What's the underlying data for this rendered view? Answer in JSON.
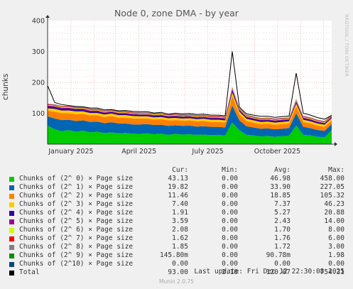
{
  "title": "Node 0, zone DMA - by year",
  "side_label": "RRDTOOL / TOBI OETIKER",
  "version": "Munin 2.0.75",
  "last_update": "Last update: Fri Dec 12 22:30:08 2025",
  "legend_headers": {
    "cur": "Cur:",
    "min": "Min:",
    "avg": "Avg:",
    "max": "Max:"
  },
  "legend": [
    {
      "name": "Chunks of (2^ 0) × Page size",
      "color": "#00cc00",
      "cur": "43.13",
      "min": "0.00",
      "avg": "46.98",
      "max": "458.00"
    },
    {
      "name": "Chunks of (2^ 1) × Page size",
      "color": "#0066b3",
      "cur": "19.82",
      "min": "0.00",
      "avg": "33.90",
      "max": "227.05"
    },
    {
      "name": "Chunks of (2^ 2) × Page size",
      "color": "#ff8000",
      "cur": "11.46",
      "min": "0.00",
      "avg": "18.85",
      "max": "105.32"
    },
    {
      "name": "Chunks of (2^ 3) × Page size",
      "color": "#ffcc00",
      "cur": "7.40",
      "min": "0.00",
      "avg": "7.37",
      "max": "46.23"
    },
    {
      "name": "Chunks of (2^ 4) × Page size",
      "color": "#330099",
      "cur": "1.91",
      "min": "0.00",
      "avg": "5.27",
      "max": "20.88"
    },
    {
      "name": "Chunks of (2^ 5) × Page size",
      "color": "#990099",
      "cur": "3.59",
      "min": "0.00",
      "avg": "2.43",
      "max": "14.00"
    },
    {
      "name": "Chunks of (2^ 6) × Page size",
      "color": "#ccff00",
      "cur": "2.08",
      "min": "0.00",
      "avg": "1.70",
      "max": "8.00"
    },
    {
      "name": "Chunks of (2^ 7) × Page size",
      "color": "#ff0000",
      "cur": "1.62",
      "min": "0.00",
      "avg": "1.76",
      "max": "6.00"
    },
    {
      "name": "Chunks of (2^ 8) × Page size",
      "color": "#808080",
      "cur": "1.85",
      "min": "0.00",
      "avg": "1.72",
      "max": "3.00"
    },
    {
      "name": "Chunks of (2^ 9) × Page size",
      "color": "#008f00",
      "cur": "145.80m",
      "min": "0.00",
      "avg": "90.78m",
      "max": "1.98"
    },
    {
      "name": "Chunks of (2^10) × Page size",
      "color": "#00487d",
      "cur": "0.00",
      "min": "0.00",
      "avg": "0.00",
      "max": "0.00"
    },
    {
      "name": "Total",
      "color": "#000000",
      "cur": "93.00",
      "min": "2.10",
      "avg": "120.07",
      "max": "754.31"
    }
  ],
  "chart_data": {
    "type": "area",
    "title": "Node 0, zone DMA - by year",
    "ylabel": "chunks",
    "xlabel": "",
    "ylim": [
      0,
      400
    ],
    "y_ticks": [
      100,
      200,
      300,
      400
    ],
    "x_ticks": [
      "January 2025",
      "April 2025",
      "July 2025",
      "October 2025"
    ],
    "x_range": [
      "2024-12-01",
      "2025-12-12"
    ],
    "grid": true,
    "stacked": true,
    "series": [
      {
        "name": "Chunks of (2^ 0) × Page size",
        "color": "#00cc00",
        "values": [
          60,
          48,
          42,
          45,
          40,
          44,
          38,
          40,
          36,
          38,
          35,
          36,
          34,
          33,
          35,
          32,
          34,
          30,
          33,
          31,
          32,
          30,
          31,
          29,
          30,
          28,
          70,
          45,
          30,
          28,
          25,
          26,
          24,
          26,
          27,
          60,
          30,
          28,
          24,
          22,
          45
        ]
      },
      {
        "name": "Chunks of (2^ 1) × Page size",
        "color": "#0066b3",
        "values": [
          30,
          35,
          36,
          34,
          35,
          33,
          34,
          33,
          32,
          33,
          32,
          31,
          30,
          31,
          30,
          30,
          29,
          29,
          28,
          28,
          28,
          27,
          27,
          27,
          26,
          26,
          55,
          32,
          28,
          26,
          25,
          25,
          24,
          24,
          25,
          40,
          26,
          24,
          22,
          21,
          20
        ]
      },
      {
        "name": "Chunks of (2^ 2) × Page size",
        "color": "#ff8000",
        "values": [
          18,
          22,
          22,
          21,
          22,
          21,
          21,
          20,
          20,
          20,
          19,
          19,
          19,
          19,
          18,
          18,
          18,
          18,
          17,
          17,
          17,
          17,
          17,
          16,
          16,
          16,
          30,
          20,
          17,
          16,
          15,
          15,
          15,
          15,
          15,
          22,
          16,
          15,
          14,
          13,
          12
        ]
      },
      {
        "name": "Chunks of (2^ 3) × Page size",
        "color": "#ffcc00",
        "values": [
          8,
          9,
          9,
          9,
          9,
          8,
          8,
          8,
          8,
          8,
          8,
          8,
          8,
          7,
          7,
          7,
          7,
          7,
          7,
          7,
          7,
          7,
          7,
          7,
          7,
          7,
          12,
          8,
          7,
          7,
          7,
          7,
          7,
          7,
          7,
          9,
          7,
          7,
          7,
          7,
          7
        ]
      },
      {
        "name": "Chunks of (2^ 4) × Page size",
        "color": "#330099",
        "values": [
          6,
          6,
          6,
          6,
          6,
          6,
          5,
          5,
          5,
          5,
          5,
          5,
          5,
          5,
          5,
          5,
          5,
          5,
          5,
          5,
          5,
          5,
          5,
          5,
          5,
          5,
          8,
          5,
          5,
          5,
          5,
          5,
          5,
          5,
          5,
          6,
          5,
          5,
          4,
          4,
          2
        ]
      },
      {
        "name": "Chunks of (2^ 5) × Page size",
        "color": "#990099",
        "values": [
          3,
          3,
          3,
          3,
          3,
          3,
          3,
          3,
          2,
          2,
          2,
          2,
          2,
          2,
          2,
          2,
          2,
          2,
          2,
          2,
          2,
          2,
          2,
          2,
          2,
          2,
          4,
          2,
          2,
          2,
          2,
          2,
          2,
          2,
          2,
          3,
          2,
          2,
          2,
          2,
          4
        ]
      },
      {
        "name": "Chunks of (2^ 6) × Page size",
        "color": "#ccff00",
        "values": [
          2,
          2,
          2,
          2,
          2,
          2,
          2,
          2,
          2,
          2,
          2,
          2,
          2,
          2,
          2,
          2,
          2,
          2,
          2,
          2,
          2,
          2,
          2,
          2,
          2,
          2,
          2,
          2,
          2,
          2,
          2,
          2,
          2,
          2,
          2,
          2,
          2,
          2,
          2,
          2,
          2
        ]
      },
      {
        "name": "Chunks of (2^ 7) × Page size",
        "color": "#ff0000",
        "values": [
          2,
          2,
          2,
          2,
          2,
          2,
          2,
          2,
          2,
          2,
          2,
          2,
          2,
          2,
          2,
          2,
          2,
          2,
          2,
          2,
          2,
          2,
          2,
          2,
          2,
          2,
          2,
          2,
          2,
          2,
          2,
          2,
          2,
          2,
          2,
          2,
          2,
          2,
          2,
          2,
          2
        ]
      },
      {
        "name": "Chunks of (2^ 8) × Page size",
        "color": "#808080",
        "values": [
          2,
          2,
          2,
          2,
          2,
          2,
          2,
          2,
          2,
          2,
          2,
          2,
          2,
          2,
          2,
          2,
          2,
          2,
          2,
          2,
          2,
          2,
          2,
          2,
          2,
          2,
          2,
          2,
          2,
          2,
          2,
          2,
          2,
          2,
          2,
          2,
          2,
          2,
          2,
          2,
          2
        ]
      },
      {
        "name": "Total",
        "color": "#000000",
        "line": true,
        "values": [
          190,
          135,
          128,
          125,
          122,
          121,
          117,
          117,
          111,
          112,
          108,
          109,
          106,
          105,
          105,
          101,
          103,
          97,
          100,
          98,
          99,
          96,
          97,
          94,
          94,
          92,
          300,
          120,
          98,
          94,
          90,
          90,
          87,
          89,
          91,
          230,
          100,
          94,
          86,
          81,
          93
        ]
      }
    ]
  }
}
